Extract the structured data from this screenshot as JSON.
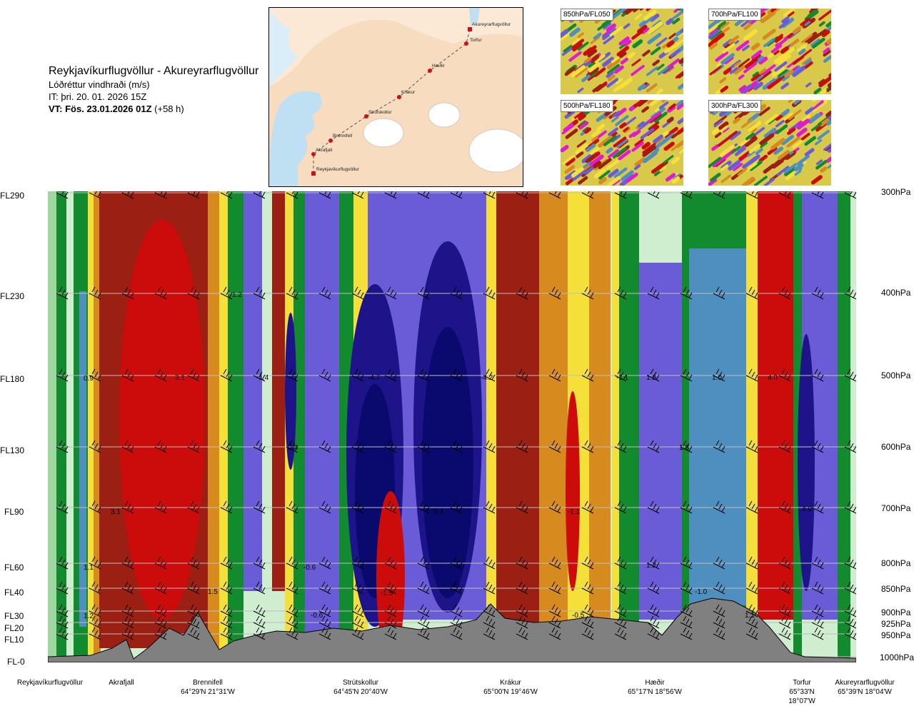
{
  "header": {
    "title": "Reykjavíkurflugvöllur - Akureyrarflugvöllur",
    "subtitle": "Lóðréttur vindhraði (m/s)",
    "issue_time": "IT: þri. 20. 01. 2026 15Z",
    "valid_time": "VT: Fös. 23.01.2026 01Z",
    "lead_time": "(+58 h)"
  },
  "map": {
    "waypoints": [
      "Akureyrarflugvöllur",
      "Torfur",
      "Hæðir",
      "Krákur",
      "Strútskollur",
      "Brennifell",
      "Akrafjall",
      "Reykjavíkurflugvöllur"
    ]
  },
  "panels": [
    "850hPa/FL050",
    "700hPa/FL100",
    "500hPa/FL180",
    "300hPa/FL300"
  ],
  "left_axis": [
    "FL290",
    "FL230",
    "FL180",
    "FL130",
    "FL90",
    "FL60",
    "FL40",
    "FL30",
    "FL20",
    "FL10",
    "FL-0"
  ],
  "right_axis": [
    "300hPa",
    "400hPa",
    "500hPa",
    "600hPa",
    "700hPa",
    "800hPa",
    "850hPa",
    "900hPa",
    "925hPa",
    "950hPa",
    "1000hPa"
  ],
  "bottom_axis": [
    {
      "name": "Reykjavíkurflugvöllur",
      "coord": ""
    },
    {
      "name": "Akrafjall",
      "coord": ""
    },
    {
      "name": "Brennifell",
      "coord": "64°29'N 21°31'W"
    },
    {
      "name": "Strútskollur",
      "coord": "64°45'N 20°40'W"
    },
    {
      "name": "Krákur",
      "coord": "65°00'N 19°46'W"
    },
    {
      "name": "Hæðir",
      "coord": "65°17'N 18°56'W"
    },
    {
      "name": "Torfur",
      "coord": "65°33'N 18°07'W"
    },
    {
      "name": "Akureyrarflugvöllur",
      "coord": "65°39'N 18°04'W"
    }
  ],
  "value_labels": [
    "0.9",
    "3.1",
    "-1.4",
    "1.2",
    "-4.7",
    "-4.2",
    "-1.1",
    "1.8",
    "1.0",
    "4.0",
    "0.4",
    "1.8",
    "3.1",
    "0.4",
    "-1.1",
    "4.0",
    "1.1",
    "-0.6",
    "1.2",
    "1.5",
    "-1.5",
    "-1.0",
    "1.2",
    "-0.6",
    "-0.5",
    "1.1"
  ],
  "colors": {
    "strong_down": "#0a0a6e",
    "down": "#6a5cd6",
    "weak_down": "#4f8fc0",
    "neutral_green": "#128a2e",
    "neutral_light": "#cfeed0",
    "weak_up": "#f5e03a",
    "up": "#d78a1e",
    "strong_up": "#cc0b0b",
    "terrain": "#808080"
  }
}
